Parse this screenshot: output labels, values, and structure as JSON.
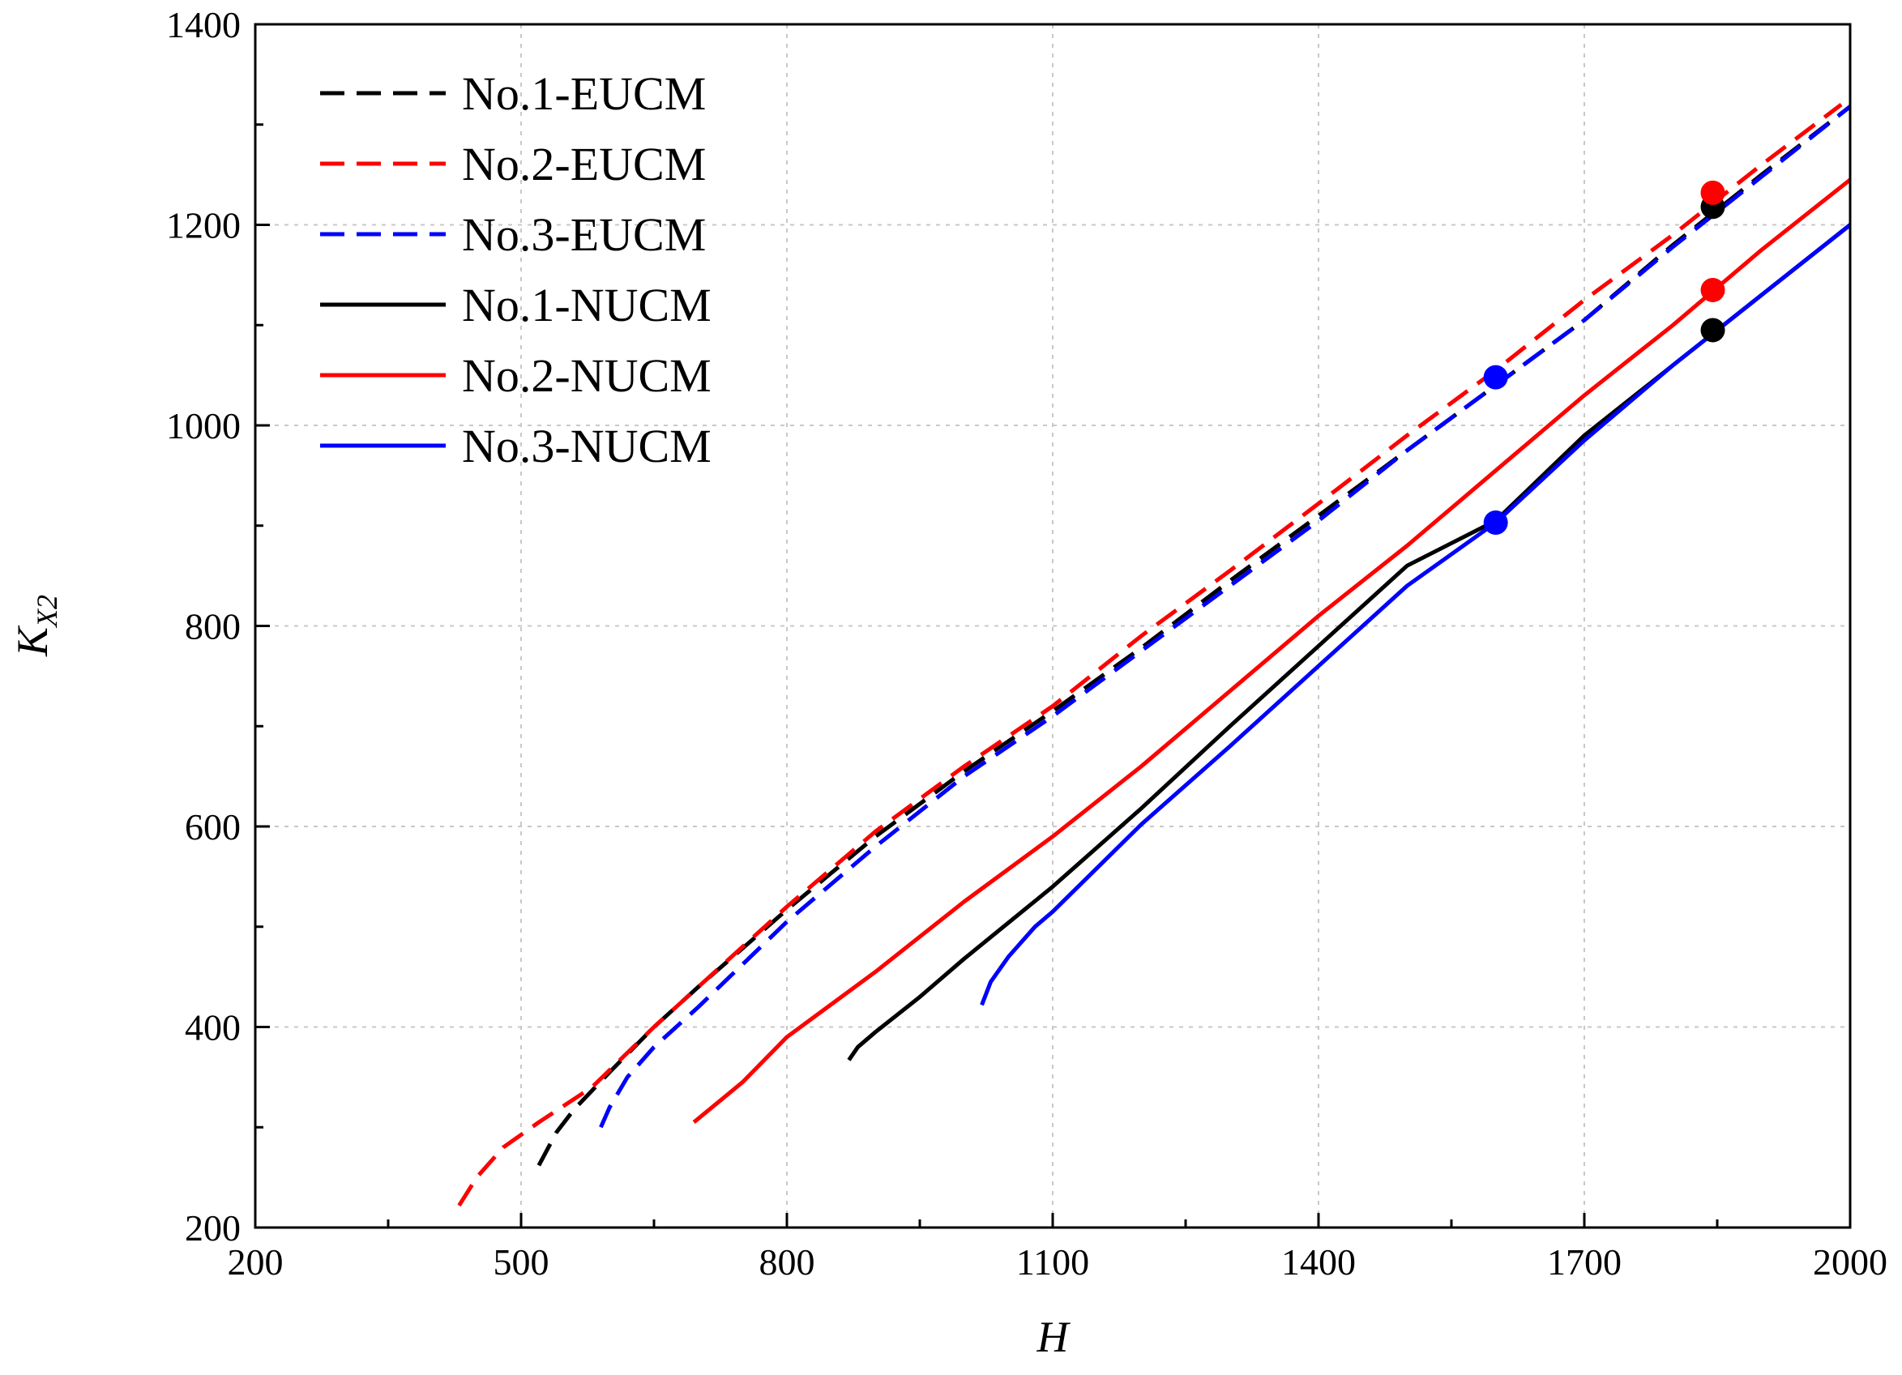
{
  "chart_data": {
    "type": "line",
    "title": "",
    "xlabel": "H",
    "ylabel_main": "K",
    "ylabel_sub": "X2",
    "xlim": [
      200,
      2000
    ],
    "ylim": [
      200,
      1400
    ],
    "x_ticks": [
      200,
      500,
      800,
      1100,
      1400,
      1700,
      2000
    ],
    "y_ticks": [
      200,
      400,
      600,
      800,
      1000,
      1200,
      1400
    ],
    "x_tick_labels": [
      "200",
      "500",
      "800",
      "1100",
      "1400",
      "1700",
      "2000"
    ],
    "y_tick_labels": [
      "200",
      "400",
      "600",
      "800",
      "1000",
      "1200",
      "1400"
    ],
    "x_minor_step": 150,
    "y_minor_step": 100,
    "grid": true,
    "legend_position": "top-left",
    "series": [
      {
        "name": "No.1-EUCM",
        "color": "#000000",
        "style": "dashed",
        "x": [
          520,
          540,
          560,
          600,
          650,
          700,
          800,
          900,
          1000,
          1100,
          1200,
          1300,
          1400,
          1500,
          1600,
          1700,
          1800,
          1900,
          2000
        ],
        "y": [
          262,
          295,
          318,
          355,
          400,
          440,
          517,
          590,
          655,
          715,
          778,
          845,
          910,
          975,
          1040,
          1105,
          1180,
          1250,
          1318
        ]
      },
      {
        "name": "No.2-EUCM",
        "color": "#ff0000",
        "style": "dashed",
        "x": [
          430,
          450,
          480,
          520,
          580,
          650,
          700,
          800,
          900,
          1000,
          1100,
          1200,
          1300,
          1400,
          1500,
          1600,
          1700,
          1800,
          1900,
          1990
        ],
        "y": [
          222,
          250,
          280,
          305,
          340,
          400,
          440,
          520,
          595,
          660,
          720,
          790,
          855,
          922,
          990,
          1055,
          1125,
          1190,
          1260,
          1320
        ]
      },
      {
        "name": "No.3-EUCM",
        "color": "#0000ff",
        "style": "dashed",
        "x": [
          590,
          600,
          620,
          650,
          700,
          800,
          900,
          1000,
          1100,
          1200,
          1300,
          1400,
          1500,
          1600,
          1700,
          1800,
          1900,
          2000
        ],
        "y": [
          300,
          320,
          350,
          380,
          420,
          505,
          580,
          650,
          710,
          775,
          840,
          905,
          975,
          1040,
          1105,
          1178,
          1248,
          1318
        ]
      },
      {
        "name": "No.1-NUCM",
        "color": "#000000",
        "style": "solid",
        "x": [
          870,
          880,
          900,
          950,
          1000,
          1100,
          1200,
          1300,
          1400,
          1500,
          1600,
          1700,
          1800,
          1900,
          2000
        ],
        "y": [
          367,
          380,
          395,
          430,
          468,
          540,
          618,
          700,
          780,
          860,
          905,
          990,
          1060,
          1130,
          1200
        ]
      },
      {
        "name": "No.2-NUCM",
        "color": "#ff0000",
        "style": "solid",
        "x": [
          695,
          750,
          800,
          900,
          1000,
          1100,
          1200,
          1300,
          1400,
          1500,
          1600,
          1700,
          1800,
          1900,
          2000
        ],
        "y": [
          305,
          345,
          390,
          455,
          525,
          590,
          660,
          735,
          810,
          880,
          955,
          1030,
          1100,
          1175,
          1245
        ]
      },
      {
        "name": "No.3-NUCM",
        "color": "#0000ff",
        "style": "solid",
        "x": [
          1020,
          1030,
          1050,
          1080,
          1100,
          1200,
          1300,
          1400,
          1500,
          1600,
          1700,
          1800,
          1900,
          2000
        ],
        "y": [
          422,
          445,
          470,
          500,
          515,
          602,
          680,
          760,
          840,
          903,
          985,
          1060,
          1130,
          1200
        ]
      }
    ],
    "markers": [
      {
        "series": "No.1-EUCM",
        "x": 1845,
        "y": 1218,
        "color": "#000000"
      },
      {
        "series": "No.2-EUCM",
        "x": 1845,
        "y": 1232,
        "color": "#ff0000"
      },
      {
        "series": "No.3-EUCM",
        "x": 1600,
        "y": 1048,
        "color": "#0000ff"
      },
      {
        "series": "No.1-NUCM",
        "x": 1845,
        "y": 1095,
        "color": "#000000"
      },
      {
        "series": "No.2-NUCM",
        "x": 1845,
        "y": 1135,
        "color": "#ff0000"
      },
      {
        "series": "No.3-NUCM",
        "x": 1600,
        "y": 903,
        "color": "#0000ff"
      }
    ]
  }
}
